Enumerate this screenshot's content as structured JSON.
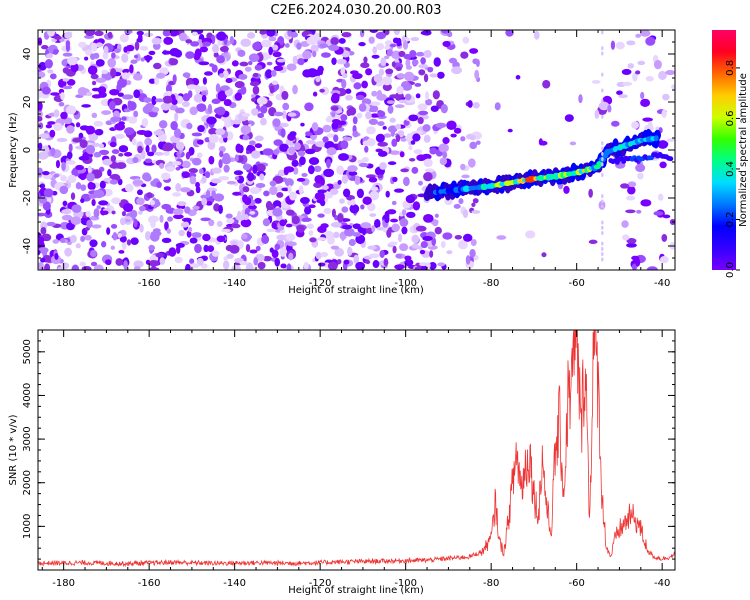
{
  "title": "C2E6.2024.030.20.00.R03",
  "chart_data": [
    {
      "type": "heatmap",
      "xlabel": "Height of straight line (km)",
      "ylabel": "Frequency (Hz)",
      "xlim": [
        -186,
        -37
      ],
      "ylim": [
        -50,
        50
      ],
      "x_ticks": [
        -180,
        -160,
        -140,
        -120,
        -100,
        -80,
        -60,
        -40
      ],
      "y_ticks": [
        -40,
        -20,
        0,
        20,
        40
      ],
      "colorbar": {
        "label": "Normalized spectral amplitude",
        "range": [
          0,
          0.95
        ],
        "ticks": [
          "0.0",
          "0.2",
          "0.4",
          "0.6",
          "0.8"
        ],
        "colors": [
          "#ffffff",
          "#d9b8ff",
          "#8a2be2",
          "#6a00ff",
          "#0000ff",
          "#00c8ff",
          "#00ff66",
          "#ccff00",
          "#ffcc00",
          "#ff6600",
          "#ff0033",
          "#ff0066"
        ]
      },
      "signal_track": {
        "x": [
          -95,
          -90,
          -85,
          -80,
          -75,
          -70,
          -65,
          -60,
          -55,
          -53,
          -50,
          -45,
          -41
        ],
        "y": [
          -18,
          -17,
          -16,
          -15,
          -13.5,
          -12,
          -11,
          -9.5,
          -7,
          -1,
          1,
          4,
          5
        ],
        "peak_amplitude": [
          0.25,
          0.3,
          0.4,
          0.6,
          0.7,
          0.9,
          0.6,
          0.85,
          0.55,
          0.45,
          0.5,
          0.45,
          0.4
        ]
      },
      "secondary_track": {
        "x": [
          -52,
          -48,
          -44,
          -40,
          -38
        ],
        "y": [
          -5,
          -4,
          -3,
          -2,
          -4
        ]
      }
    },
    {
      "type": "line",
      "xlabel": "Height of straight line (km)",
      "ylabel": "SNR (10 * v/v)",
      "xlim": [
        -186,
        -37
      ],
      "ylim": [
        0,
        5500
      ],
      "x_ticks": [
        -180,
        -160,
        -140,
        -120,
        -100,
        -80,
        -60,
        -40
      ],
      "y_ticks": [
        1000,
        2000,
        3000,
        4000,
        5000
      ],
      "line_color": "#ee3333",
      "series": [
        {
          "x": [
            -186,
            -175,
            -165,
            -155,
            -145,
            -135,
            -125,
            -115,
            -105,
            -95,
            -90,
            -85,
            -82,
            -80,
            -79,
            -78,
            -77,
            -76,
            -75,
            -74,
            -73,
            -72,
            -71,
            -70,
            -69,
            -68,
            -67,
            -66,
            -65,
            -64,
            -63,
            -62,
            -61,
            -60,
            -59,
            -58,
            -57,
            -56,
            -55,
            -54,
            -53,
            -52,
            -51,
            -50,
            -49,
            -48,
            -47,
            -46,
            -45,
            -44,
            -43,
            -42,
            -40,
            -38,
            -37
          ],
          "y": [
            150,
            160,
            140,
            170,
            150,
            160,
            150,
            180,
            200,
            220,
            260,
            300,
            420,
            700,
            1500,
            600,
            400,
            1100,
            1900,
            2650,
            1800,
            2300,
            2600,
            1700,
            1200,
            2500,
            1400,
            800,
            2600,
            3300,
            1600,
            3900,
            4200,
            5500,
            3000,
            4900,
            1100,
            5200,
            4200,
            1500,
            500,
            300,
            700,
            900,
            1000,
            1150,
            1200,
            1100,
            900,
            600,
            400,
            300,
            250,
            300,
            350
          ]
        }
      ]
    }
  ]
}
